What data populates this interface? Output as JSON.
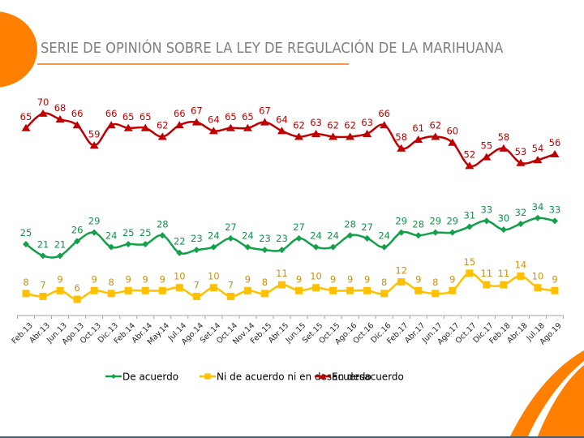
{
  "title": "SERIE DE OPINIÓN SOBRE LA LEY DE REGULACIÓN DE LA MARIHUANA",
  "chart_data": {
    "type": "line",
    "title": "SERIE DE OPINIÓN SOBRE LA LEY DE REGULACIÓN DE LA MARIHUANA",
    "xlabel": "",
    "ylabel": "",
    "ylim": [
      0,
      75
    ],
    "grid": false,
    "legend_position": "bottom",
    "categories": [
      "Feb.13",
      "Abr.13",
      "Jun.13",
      "Ago.13",
      "Oct.13",
      "Dic.13",
      "Feb.14",
      "Abr.14",
      "May.14",
      "Jul.14",
      "Ago.14",
      "Set.14",
      "Oct.14",
      "Nov.14",
      "Feb.15",
      "Abr.15",
      "Jun.15",
      "Set.15",
      "Oct.15",
      "Ago.16",
      "Oct.16",
      "Dic.16",
      "Feb.17",
      "Abr.17",
      "Jun.17",
      "Ago.17",
      "Oct.17",
      "Dic.17",
      "Feb.18",
      "Abr.18",
      "Jul.18",
      "Ago.19"
    ],
    "series": [
      {
        "name": "De acuerdo",
        "color": "#12a04a",
        "label_color": "#12924a",
        "marker": "diamond",
        "values": [
          25,
          21,
          21,
          26,
          29,
          24,
          25,
          25,
          28,
          22,
          23,
          24,
          27,
          24,
          23,
          23,
          27,
          24,
          24,
          28,
          27,
          24,
          29,
          28,
          29,
          29,
          31,
          33,
          30,
          32,
          34,
          33
        ]
      },
      {
        "name": "Ni de acuerdo ni en desacuerdo",
        "color": "#ffc000",
        "label_color": "#c9920f",
        "marker": "square",
        "values": [
          8,
          7,
          9,
          6,
          9,
          8,
          9,
          9,
          9,
          10,
          7,
          10,
          7,
          9,
          8,
          11,
          9,
          10,
          9,
          9,
          9,
          8,
          12,
          9,
          8,
          9,
          15,
          11,
          11,
          14,
          10,
          9
        ]
      },
      {
        "name": "En desacuerdo",
        "color": "#c00000",
        "label_color": "#c00000",
        "marker": "triangle",
        "values": [
          65,
          70,
          68,
          66,
          59,
          66,
          65,
          65,
          62,
          66,
          67,
          64,
          65,
          65,
          67,
          64,
          62,
          63,
          62,
          62,
          63,
          66,
          58,
          61,
          62,
          60,
          52,
          55,
          58,
          53,
          54,
          56
        ]
      }
    ]
  },
  "colors": {
    "accent": "#ff7f00",
    "title_text": "#7f7f7f",
    "axis": "#a6a6a6"
  }
}
